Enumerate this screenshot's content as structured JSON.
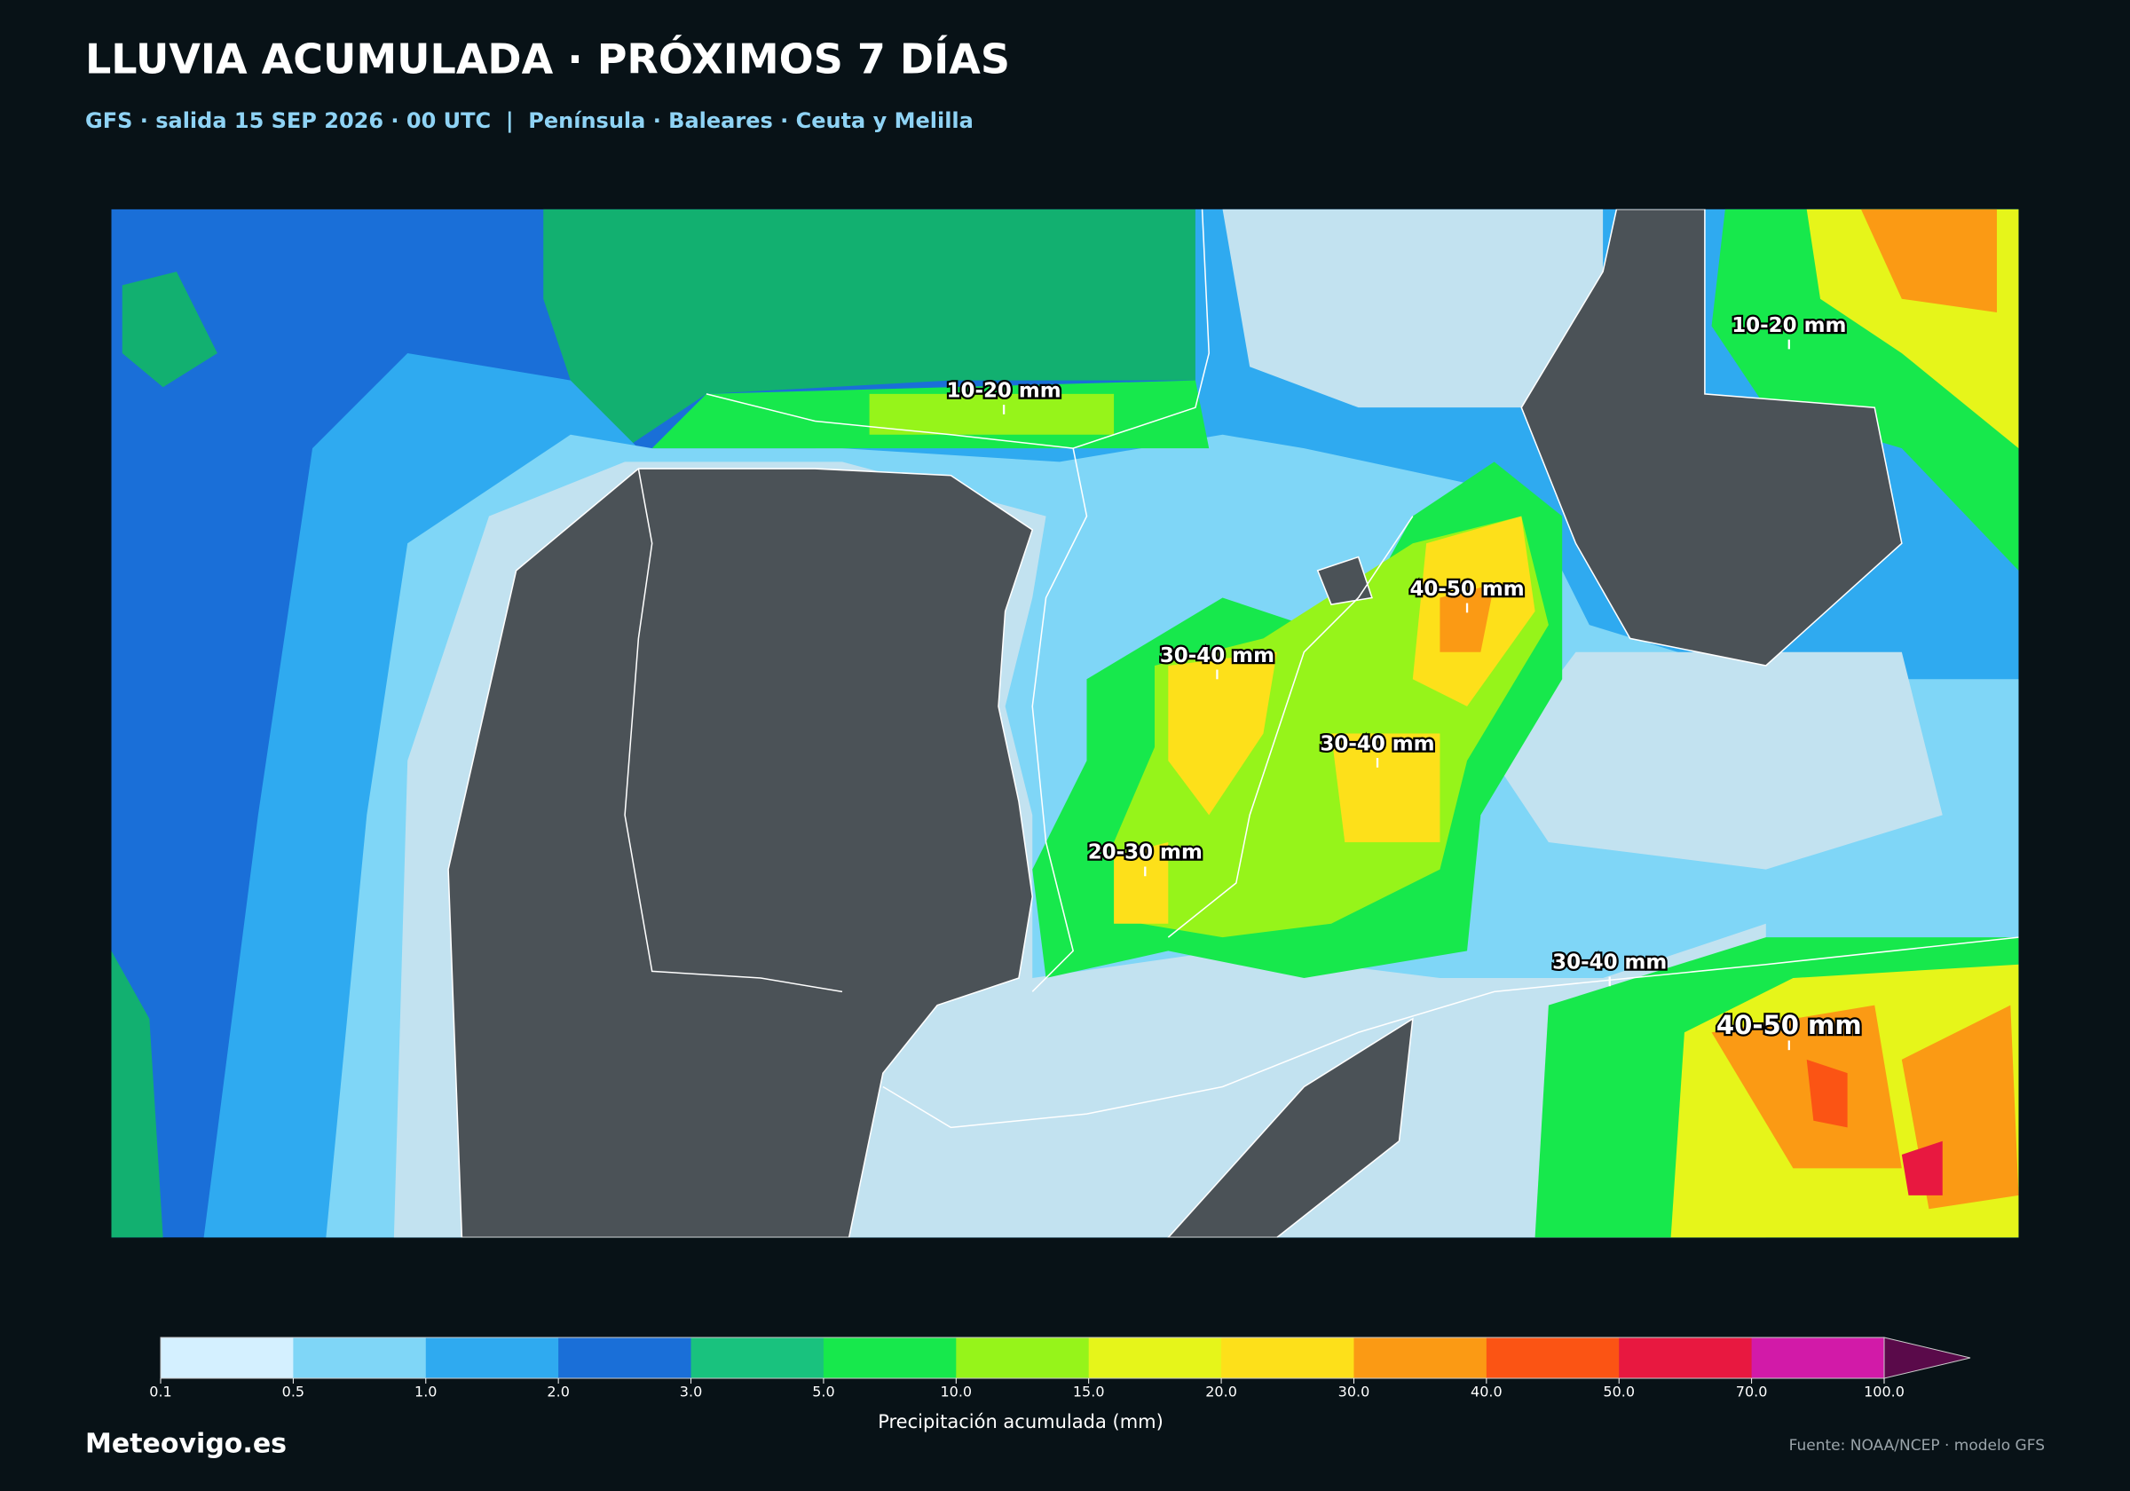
{
  "header": {
    "title": "LLUVIA ACUMULADA · PRÓXIMOS 7 DÍAS",
    "subtitle": "GFS · salida 15 SEP 2026 · 00 UTC  |  Península · Baleares · Ceuta y Melilla"
  },
  "map": {
    "labels": [
      "10-20 mm",
      "10-20 mm",
      "40-50 mm",
      "30-40 mm",
      "30-40 mm",
      "20-30 mm",
      "30-40 mm",
      "40-50 mm"
    ]
  },
  "legend": {
    "ticks": [
      "0.1",
      "0.5",
      "1.0",
      "2.0",
      "3.0",
      "5.0",
      "10.0",
      "15.0",
      "20.0",
      "30.0",
      "40.0",
      "50.0",
      "70.0",
      "100.0"
    ],
    "colors": [
      "#d4f0ff",
      "#7fd6f7",
      "#2faaf0",
      "#1a6fd8",
      "#19c27e",
      "#17e84c",
      "#96f41a",
      "#e6f51a",
      "#fde01a",
      "#fb9a14",
      "#fb5414",
      "#e81840",
      "#d21aa8",
      "#5a0a4a"
    ],
    "label": "Precipitación acumulada (mm)"
  },
  "footer": {
    "brand": "Meteovigo.es",
    "source": "Fuente: NOAA/NCEP · modelo GFS"
  }
}
